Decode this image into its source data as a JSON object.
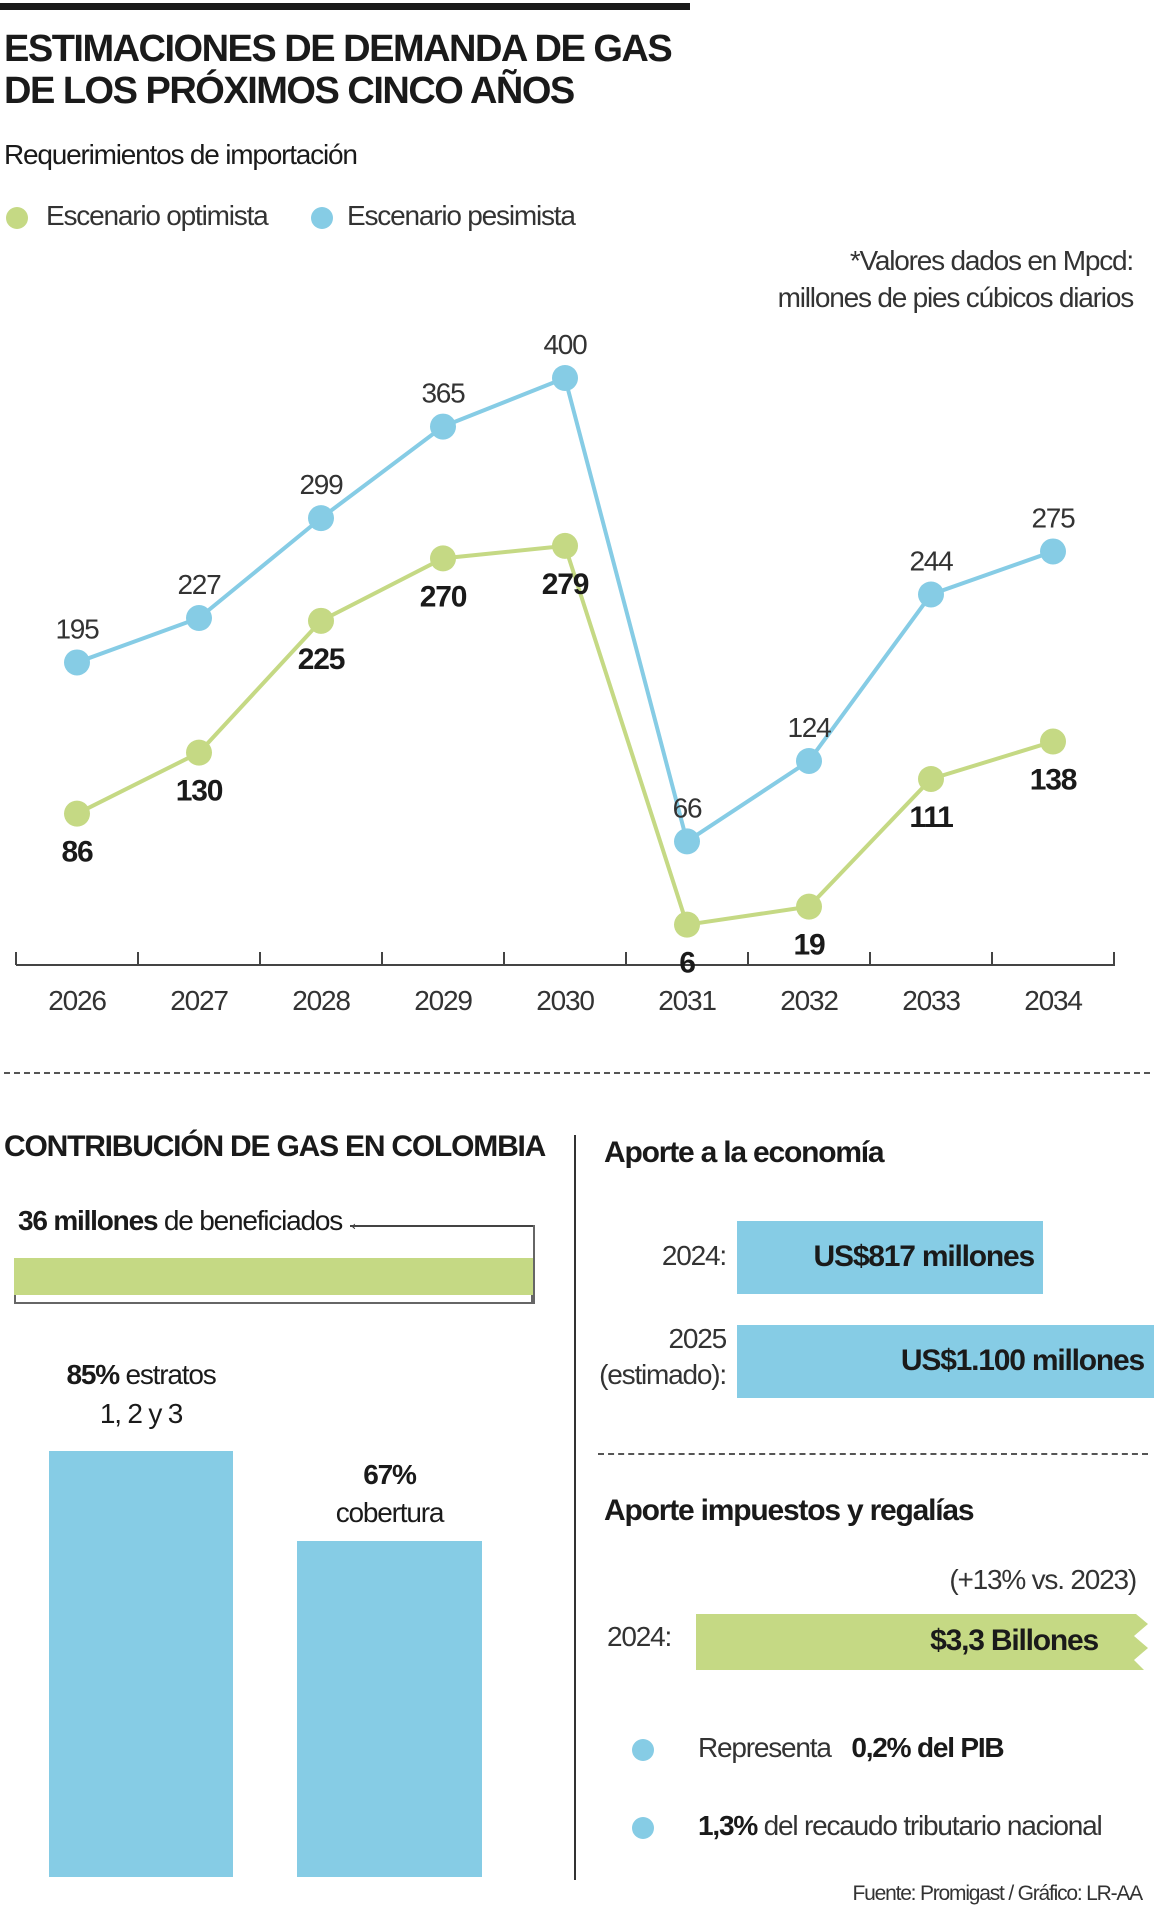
{
  "title_lines": [
    "ESTIMACIONES DE DEMANDA DE GAS",
    "DE LOS PRÓXIMOS CINCO AÑOS"
  ],
  "subtitle": "Requerimientos de importación",
  "note_lines": [
    "*Valores dados en Mpcd:",
    "millones de pies cúbicos diarios"
  ],
  "colors": {
    "optimista": "#c5d984",
    "pesimista": "#86cce5",
    "text": "#1a1a1a"
  },
  "chart_data": {
    "type": "line",
    "title": "Requerimientos de importación",
    "categories": [
      "2026",
      "2027",
      "2028",
      "2029",
      "2030",
      "2031",
      "2032",
      "2033",
      "2034"
    ],
    "series": [
      {
        "name": "Escenario optimista",
        "values": [
          86,
          130,
          225,
          270,
          279,
          6,
          19,
          111,
          138
        ]
      },
      {
        "name": "Escenario pesimista",
        "values": [
          195,
          227,
          299,
          365,
          400,
          66,
          124,
          244,
          275
        ]
      }
    ],
    "ylim": [
      0,
      400
    ],
    "grid": false,
    "legend": "top-left",
    "units_note": "*Valores dados en Mpcd: millones de pies cúbicos diarios"
  },
  "contribution": {
    "title": "CONTRIBUCIÓN DE GAS EN COLOMBIA",
    "beneficiaries_bold": "36 millones",
    "beneficiaries_rest": " de beneficiados",
    "bar1": {
      "bold": "85%",
      "rest": " estratos",
      "line2": "1, 2 y 3",
      "value": 85
    },
    "bar2": {
      "bold": "67%",
      "line2": "cobertura",
      "value": 67
    }
  },
  "economy": {
    "title": "Aporte a la economía",
    "rows": [
      {
        "label": "2024:",
        "value": "US$817 millones",
        "amount": 817
      },
      {
        "label_lines": [
          "2025",
          "(estimado):"
        ],
        "value": "US$1.100 millones",
        "amount": 1100
      }
    ]
  },
  "taxes": {
    "title": "Aporte impuestos y regalías",
    "change": "(+13% vs. 2023)",
    "label": "2024:",
    "value": "$3,3 Billones",
    "bullets": [
      {
        "text": "Representa ",
        "bold": "0,2% del PIB"
      },
      {
        "bold": "1,3%",
        "text": " del recaudo tributario nacional"
      }
    ]
  },
  "source": "Fuente: Promigast / Gráfico: LR-AA"
}
